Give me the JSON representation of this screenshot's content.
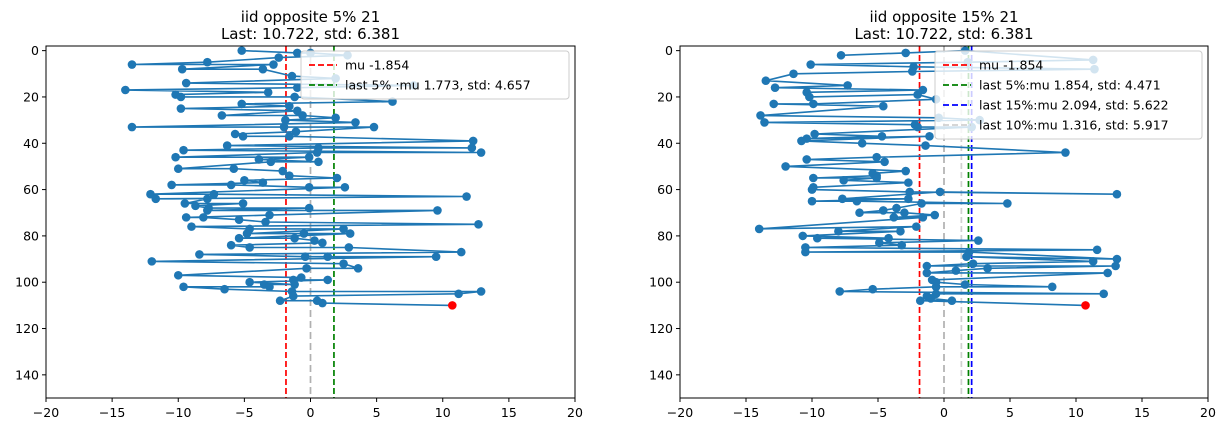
{
  "chart_data": [
    {
      "type": "scatter",
      "title": "iid opposite 5% 21",
      "subtitle": "Last: 10.722, std: 6.381",
      "xlim": [
        -20,
        20
      ],
      "ylim": [
        150,
        -2
      ],
      "y_inverted": true,
      "xticks": [
        -20,
        -15,
        -10,
        -5,
        0,
        5,
        10,
        15,
        20
      ],
      "yticks": [
        0,
        20,
        40,
        60,
        80,
        100,
        120,
        140
      ],
      "series_color": "#1f77b4",
      "last_point": {
        "x": 10.722,
        "y": 110,
        "color": "#ff0000"
      },
      "vlines": [
        {
          "x": -1.854,
          "color": "#ff0000",
          "label": "mu -1.854"
        },
        {
          "x": 1.773,
          "color": "#008000",
          "label": "last 5% :mu  1.773, std: 4.657"
        },
        {
          "x": 0,
          "color": "#b0b0b0",
          "label": ""
        }
      ],
      "legend_loc": "upper right",
      "points": [
        [
          -5.2,
          0
        ],
        [
          -1.0,
          1
        ],
        [
          0.0,
          1
        ],
        [
          2.8,
          2
        ],
        [
          -2.4,
          3
        ],
        [
          -7.8,
          5
        ],
        [
          -13.5,
          6
        ],
        [
          -2.8,
          6
        ],
        [
          -9.7,
          8
        ],
        [
          -3.6,
          8
        ],
        [
          -1.4,
          11
        ],
        [
          1.9,
          12
        ],
        [
          -9.4,
          14
        ],
        [
          7.8,
          15
        ],
        [
          -1.0,
          16
        ],
        [
          -14.0,
          17
        ],
        [
          -3.2,
          18
        ],
        [
          -10.2,
          19
        ],
        [
          -9.8,
          20
        ],
        [
          -1.2,
          20
        ],
        [
          6.2,
          22
        ],
        [
          -5.2,
          23
        ],
        [
          -1.6,
          24
        ],
        [
          -9.8,
          25
        ],
        [
          -1.0,
          26
        ],
        [
          -6.7,
          28
        ],
        [
          -0.6,
          28
        ],
        [
          1.9,
          29
        ],
        [
          -1.9,
          30
        ],
        [
          3.4,
          31
        ],
        [
          -13.5,
          33
        ],
        [
          -2.0,
          33
        ],
        [
          4.8,
          33
        ],
        [
          -1.1,
          35
        ],
        [
          -5.7,
          36
        ],
        [
          -5.1,
          37
        ],
        [
          -1.6,
          37
        ],
        [
          12.3,
          39
        ],
        [
          -6.3,
          41
        ],
        [
          12.2,
          42
        ],
        [
          0.6,
          42
        ],
        [
          -9.6,
          43
        ],
        [
          12.9,
          44
        ],
        [
          0.5,
          44
        ],
        [
          -10.2,
          46
        ],
        [
          -0.1,
          46
        ],
        [
          -3.9,
          47
        ],
        [
          0.6,
          48
        ],
        [
          -3.0,
          48
        ],
        [
          -10.0,
          51
        ],
        [
          -5.8,
          51
        ],
        [
          -2.1,
          52
        ],
        [
          -1.6,
          54
        ],
        [
          2.0,
          55
        ],
        [
          -5.0,
          56
        ],
        [
          -3.6,
          57
        ],
        [
          -10.5,
          58
        ],
        [
          -6.0,
          58
        ],
        [
          -0.1,
          59
        ],
        [
          2.6,
          59
        ],
        [
          -12.1,
          62
        ],
        [
          -7.3,
          62
        ],
        [
          11.8,
          63
        ],
        [
          -11.7,
          64
        ],
        [
          -7.8,
          64
        ],
        [
          -9.5,
          66
        ],
        [
          -5.1,
          66
        ],
        [
          -8.7,
          67
        ],
        [
          -7.7,
          68
        ],
        [
          -0.1,
          68
        ],
        [
          -7.8,
          69
        ],
        [
          9.6,
          69
        ],
        [
          -3.1,
          71
        ],
        [
          -9.4,
          72
        ],
        [
          -8.1,
          72
        ],
        [
          -5.4,
          73
        ],
        [
          -3.4,
          74
        ],
        [
          12.7,
          75
        ],
        [
          -9.0,
          76
        ],
        [
          -4.6,
          77
        ],
        [
          2.5,
          77
        ],
        [
          -4.8,
          79
        ],
        [
          -0.5,
          79
        ],
        [
          3.0,
          79
        ],
        [
          -5.4,
          81
        ],
        [
          -1.2,
          81
        ],
        [
          0.3,
          82
        ],
        [
          0.9,
          83
        ],
        [
          -6.0,
          84
        ],
        [
          -4.6,
          85
        ],
        [
          2.9,
          85
        ],
        [
          11.4,
          87
        ],
        [
          -8.4,
          88
        ],
        [
          -0.4,
          89
        ],
        [
          1.3,
          89
        ],
        [
          9.5,
          89
        ],
        [
          -12.0,
          91
        ],
        [
          2.5,
          92
        ],
        [
          3.6,
          94
        ],
        [
          -0.3,
          94
        ],
        [
          -10.0,
          97
        ],
        [
          -0.7,
          98
        ],
        [
          -1.3,
          99
        ],
        [
          1.3,
          99
        ],
        [
          -4.6,
          100
        ],
        [
          -1.2,
          101
        ],
        [
          -3.5,
          101
        ],
        [
          -3.1,
          102
        ],
        [
          -9.6,
          102
        ],
        [
          -6.5,
          103
        ],
        [
          -1.4,
          104
        ],
        [
          12.9,
          104
        ],
        [
          11.2,
          105
        ],
        [
          -1.3,
          106
        ],
        [
          -2.3,
          108
        ],
        [
          0.5,
          108
        ],
        [
          0.9,
          109
        ],
        [
          10.722,
          110
        ]
      ]
    },
    {
      "type": "scatter",
      "title": "iid opposite 15% 21",
      "subtitle": "Last: 10.722, std: 6.381",
      "xlim": [
        -20,
        20
      ],
      "ylim": [
        150,
        -2
      ],
      "y_inverted": true,
      "xticks": [
        -20,
        -15,
        -10,
        -5,
        0,
        5,
        10,
        15,
        20
      ],
      "yticks": [
        0,
        20,
        40,
        60,
        80,
        100,
        120,
        140
      ],
      "series_color": "#1f77b4",
      "last_point": {
        "x": 10.722,
        "y": 110,
        "color": "#ff0000"
      },
      "vlines": [
        {
          "x": -1.854,
          "color": "#ff0000",
          "label": "mu -1.854"
        },
        {
          "x": 1.854,
          "color": "#008000",
          "label": "last 5%:mu  1.854, std: 4.471"
        },
        {
          "x": 2.094,
          "color": "#0000ff",
          "label": "last 15%:mu  2.094, std: 5.622"
        },
        {
          "x": 1.316,
          "color": "#d0d0d0",
          "label": "last 10%:mu  1.316, std: 5.917"
        },
        {
          "x": 0,
          "color": "#b0b0b0",
          "label": ""
        }
      ],
      "legend_loc": "upper right",
      "points": [
        [
          -7.8,
          2
        ],
        [
          -2.9,
          1
        ],
        [
          1.6,
          0
        ],
        [
          11.3,
          4
        ],
        [
          1.8,
          5
        ],
        [
          -10.1,
          6
        ],
        [
          -2.3,
          7
        ],
        [
          11.4,
          8
        ],
        [
          -2.4,
          9
        ],
        [
          -11.4,
          10
        ],
        [
          -13.5,
          13
        ],
        [
          -7.3,
          15
        ],
        [
          -12.8,
          16
        ],
        [
          -1.6,
          17
        ],
        [
          -10.4,
          18
        ],
        [
          -10.2,
          20
        ],
        [
          -2.0,
          19
        ],
        [
          -0.6,
          21
        ],
        [
          -9.9,
          23
        ],
        [
          -12.9,
          23
        ],
        [
          -4.6,
          24
        ],
        [
          -13.9,
          28
        ],
        [
          -0.4,
          29
        ],
        [
          2.7,
          30
        ],
        [
          -13.6,
          31
        ],
        [
          -2.2,
          32
        ],
        [
          -2.0,
          33
        ],
        [
          2.1,
          33
        ],
        [
          -9.8,
          36
        ],
        [
          -4.7,
          37
        ],
        [
          -10.4,
          38
        ],
        [
          -1.1,
          37
        ],
        [
          -10.8,
          39
        ],
        [
          -6.2,
          40
        ],
        [
          -1.4,
          41
        ],
        [
          9.2,
          44
        ],
        [
          -5.1,
          46
        ],
        [
          -10.4,
          47
        ],
        [
          -4.5,
          48
        ],
        [
          -12.0,
          50
        ],
        [
          -2.9,
          52
        ],
        [
          -5.4,
          53
        ],
        [
          -5.1,
          54
        ],
        [
          -9.9,
          55
        ],
        [
          -5.1,
          55
        ],
        [
          -7.6,
          56
        ],
        [
          -2.7,
          57
        ],
        [
          -9.9,
          59
        ],
        [
          -10.0,
          60
        ],
        [
          -2.6,
          61
        ],
        [
          13.1,
          62
        ],
        [
          -0.3,
          61
        ],
        [
          -7.7,
          64
        ],
        [
          -2.7,
          64
        ],
        [
          -10.0,
          65
        ],
        [
          -6.6,
          65
        ],
        [
          4.8,
          66
        ],
        [
          -1.7,
          66
        ],
        [
          -3.6,
          68
        ],
        [
          -4.6,
          69
        ],
        [
          -6.4,
          70
        ],
        [
          -3.0,
          70
        ],
        [
          -0.7,
          71
        ],
        [
          -3.8,
          72
        ],
        [
          -1.6,
          72
        ],
        [
          -14.0,
          77
        ],
        [
          -2.1,
          76
        ],
        [
          -8.0,
          78
        ],
        [
          -3.3,
          78
        ],
        [
          -10.7,
          80
        ],
        [
          -4.2,
          81
        ],
        [
          -9.6,
          81
        ],
        [
          2.6,
          82
        ],
        [
          -4.9,
          83
        ],
        [
          -3.2,
          84
        ],
        [
          -10.5,
          85
        ],
        [
          11.6,
          86
        ],
        [
          -10.5,
          87
        ],
        [
          1.9,
          87
        ],
        [
          13.1,
          90
        ],
        [
          1.7,
          89
        ],
        [
          11.3,
          91
        ],
        [
          2.2,
          92
        ],
        [
          -1.3,
          93
        ],
        [
          13.0,
          93
        ],
        [
          3.3,
          94
        ],
        [
          0.9,
          95
        ],
        [
          -1.3,
          96
        ],
        [
          12.4,
          96
        ],
        [
          -0.9,
          99
        ],
        [
          -0.6,
          100
        ],
        [
          1.6,
          101
        ],
        [
          8.2,
          102
        ],
        [
          -0.6,
          102
        ],
        [
          -5.4,
          103
        ],
        [
          -7.9,
          104
        ],
        [
          12.1,
          105
        ],
        [
          -0.6,
          105
        ],
        [
          -1.3,
          106
        ],
        [
          -1.0,
          107
        ],
        [
          0.6,
          108
        ],
        [
          -1.8,
          108
        ],
        [
          10.722,
          110
        ]
      ]
    }
  ]
}
